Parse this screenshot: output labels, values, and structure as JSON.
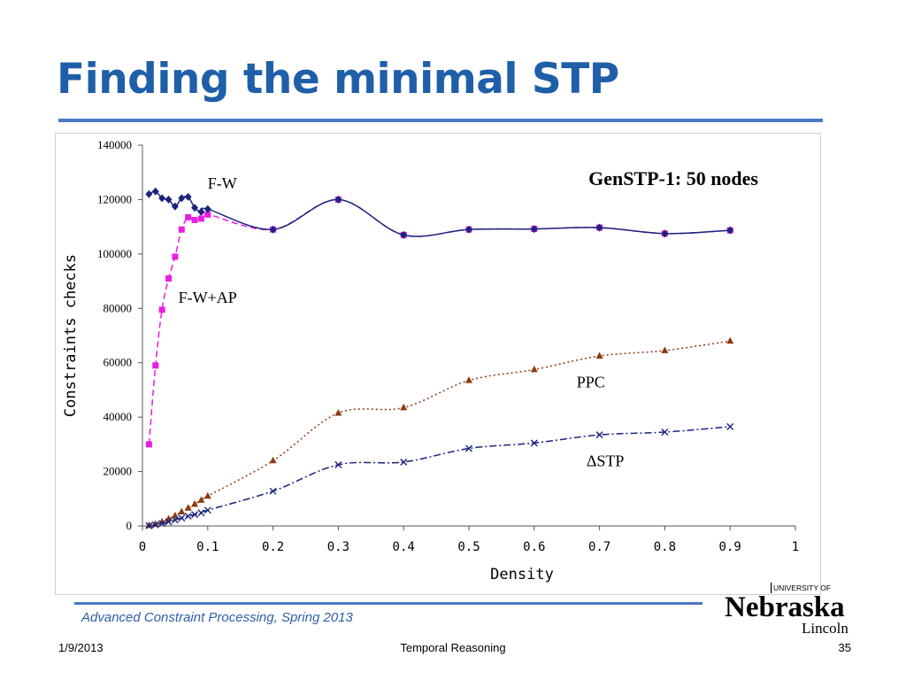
{
  "slide": {
    "title": "Finding the minimal STP",
    "course": "Advanced Constraint Processing, Spring 2013",
    "date": "1/9/2013",
    "topic": "Temporal Reasoning",
    "page_number": "35",
    "accent_color": "#1f5fa8"
  },
  "logo": {
    "university_of": "UNIVERSITY OF",
    "name": "Nebraska",
    "campus": "Lincoln",
    "color": "#000000"
  },
  "chart_data": {
    "type": "line",
    "title": "GenSTP-1: 50 nodes",
    "xlabel": "Density",
    "ylabel": "Constraints checks",
    "xlim": [
      0,
      1
    ],
    "ylim": [
      0,
      140000
    ],
    "xticks": [
      "0",
      "0.1",
      "0.2",
      "0.3",
      "0.4",
      "0.5",
      "0.6",
      "0.7",
      "0.8",
      "0.9",
      "1"
    ],
    "yticks": [
      "0",
      "20000",
      "40000",
      "60000",
      "80000",
      "100000",
      "120000",
      "140000"
    ],
    "grid": false,
    "series": [
      {
        "name": "F-W",
        "color": "#1a237e",
        "marker": "diamond",
        "line": "solid",
        "points": [
          [
            0.01,
            122000
          ],
          [
            0.02,
            123000
          ],
          [
            0.03,
            120500
          ],
          [
            0.04,
            120000
          ],
          [
            0.05,
            117500
          ],
          [
            0.06,
            120500
          ],
          [
            0.07,
            121000
          ],
          [
            0.08,
            117000
          ],
          [
            0.09,
            115500
          ],
          [
            0.1,
            116500
          ],
          [
            0.2,
            109000
          ],
          [
            0.3,
            120000
          ],
          [
            0.4,
            107000
          ],
          [
            0.5,
            109000
          ],
          [
            0.6,
            109200
          ],
          [
            0.7,
            109700
          ],
          [
            0.8,
            107500
          ],
          [
            0.9,
            108700
          ]
        ]
      },
      {
        "name": "F-W+AP",
        "color": "#e91ee3",
        "marker": "square",
        "line": "dashed",
        "points": [
          [
            0.01,
            30000
          ],
          [
            0.02,
            59000
          ],
          [
            0.03,
            79500
          ],
          [
            0.04,
            91000
          ],
          [
            0.05,
            99000
          ],
          [
            0.06,
            109000
          ],
          [
            0.07,
            113500
          ],
          [
            0.08,
            112500
          ],
          [
            0.09,
            113000
          ],
          [
            0.1,
            114500
          ],
          [
            0.2,
            109000
          ],
          [
            0.3,
            120000
          ],
          [
            0.4,
            107000
          ],
          [
            0.5,
            109000
          ],
          [
            0.6,
            109200
          ],
          [
            0.7,
            109700
          ],
          [
            0.8,
            107500
          ],
          [
            0.9,
            108700
          ]
        ]
      },
      {
        "name": "PPC",
        "color": "#8b3a0f",
        "marker": "triangle",
        "line": "dotted",
        "points": [
          [
            0.01,
            200
          ],
          [
            0.02,
            700
          ],
          [
            0.03,
            1500
          ],
          [
            0.04,
            2600
          ],
          [
            0.05,
            3800
          ],
          [
            0.06,
            5200
          ],
          [
            0.07,
            6600
          ],
          [
            0.08,
            8000
          ],
          [
            0.09,
            9500
          ],
          [
            0.1,
            11000
          ],
          [
            0.2,
            24000
          ],
          [
            0.3,
            41500
          ],
          [
            0.4,
            43500
          ],
          [
            0.5,
            53500
          ],
          [
            0.6,
            57500
          ],
          [
            0.7,
            62500
          ],
          [
            0.8,
            64500
          ],
          [
            0.9,
            68000
          ]
        ]
      },
      {
        "name": "ΔSTP",
        "color": "#1a237e",
        "marker": "x",
        "line": "dashdot",
        "points": [
          [
            0.01,
            100
          ],
          [
            0.02,
            400
          ],
          [
            0.03,
            900
          ],
          [
            0.04,
            1500
          ],
          [
            0.05,
            2200
          ],
          [
            0.06,
            2900
          ],
          [
            0.07,
            3600
          ],
          [
            0.08,
            4200
          ],
          [
            0.09,
            4800
          ],
          [
            0.1,
            5800
          ],
          [
            0.2,
            12800
          ],
          [
            0.3,
            22500
          ],
          [
            0.4,
            23500
          ],
          [
            0.5,
            28500
          ],
          [
            0.6,
            30500
          ],
          [
            0.7,
            33500
          ],
          [
            0.8,
            34500
          ],
          [
            0.9,
            36500
          ]
        ]
      }
    ],
    "annotations": [
      {
        "text": "F-W",
        "x": 0.1,
        "y": 124000
      },
      {
        "text": "F-W+AP",
        "x": 0.055,
        "y": 82000
      },
      {
        "text": "PPC",
        "x": 0.665,
        "y": 51000
      },
      {
        "text": "ΔSTP",
        "x": 0.68,
        "y": 22000
      }
    ]
  }
}
